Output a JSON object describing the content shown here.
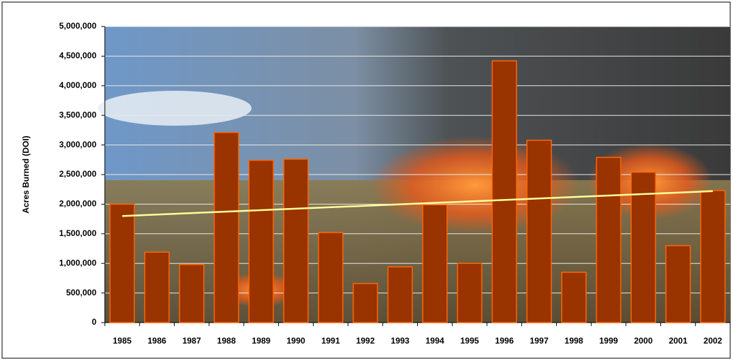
{
  "chart_data": {
    "type": "bar",
    "y_label": "Acres Burned (DOI)",
    "categories": [
      "1985",
      "1986",
      "1987",
      "1988",
      "1989",
      "1990",
      "1991",
      "1992",
      "1993",
      "1994",
      "1995",
      "1996",
      "1997",
      "1998",
      "1999",
      "2000",
      "2001",
      "2002"
    ],
    "values": [
      2000000,
      1190000,
      980000,
      3210000,
      2740000,
      2760000,
      1520000,
      660000,
      940000,
      1990000,
      1000000,
      4420000,
      3080000,
      850000,
      2790000,
      2540000,
      1300000,
      2230000
    ],
    "color": "#993300",
    "trend": [
      1800000,
      2220000
    ],
    "trend_color": "#ffff99",
    "ylim": [
      0,
      5000000
    ],
    "yticks": [
      0,
      {
        "value": 500000,
        "label": "500,000"
      },
      {
        "value": 1000000,
        "label": "1,000,000"
      },
      {
        "value": 1500000,
        "label": "1,500,000"
      },
      {
        "value": 2000000,
        "label": "2,000,000"
      },
      {
        "value": 2500000,
        "label": "2,500,000"
      },
      {
        "value": 3000000,
        "label": "3,000,000"
      },
      {
        "value": 3500000,
        "label": "3,500,000"
      },
      {
        "value": 4000000,
        "label": "4,000,000"
      },
      {
        "value": 4500000,
        "label": "4,500,000"
      },
      {
        "value": 5000000,
        "label": "5,000,000"
      }
    ],
    "grid": true
  }
}
